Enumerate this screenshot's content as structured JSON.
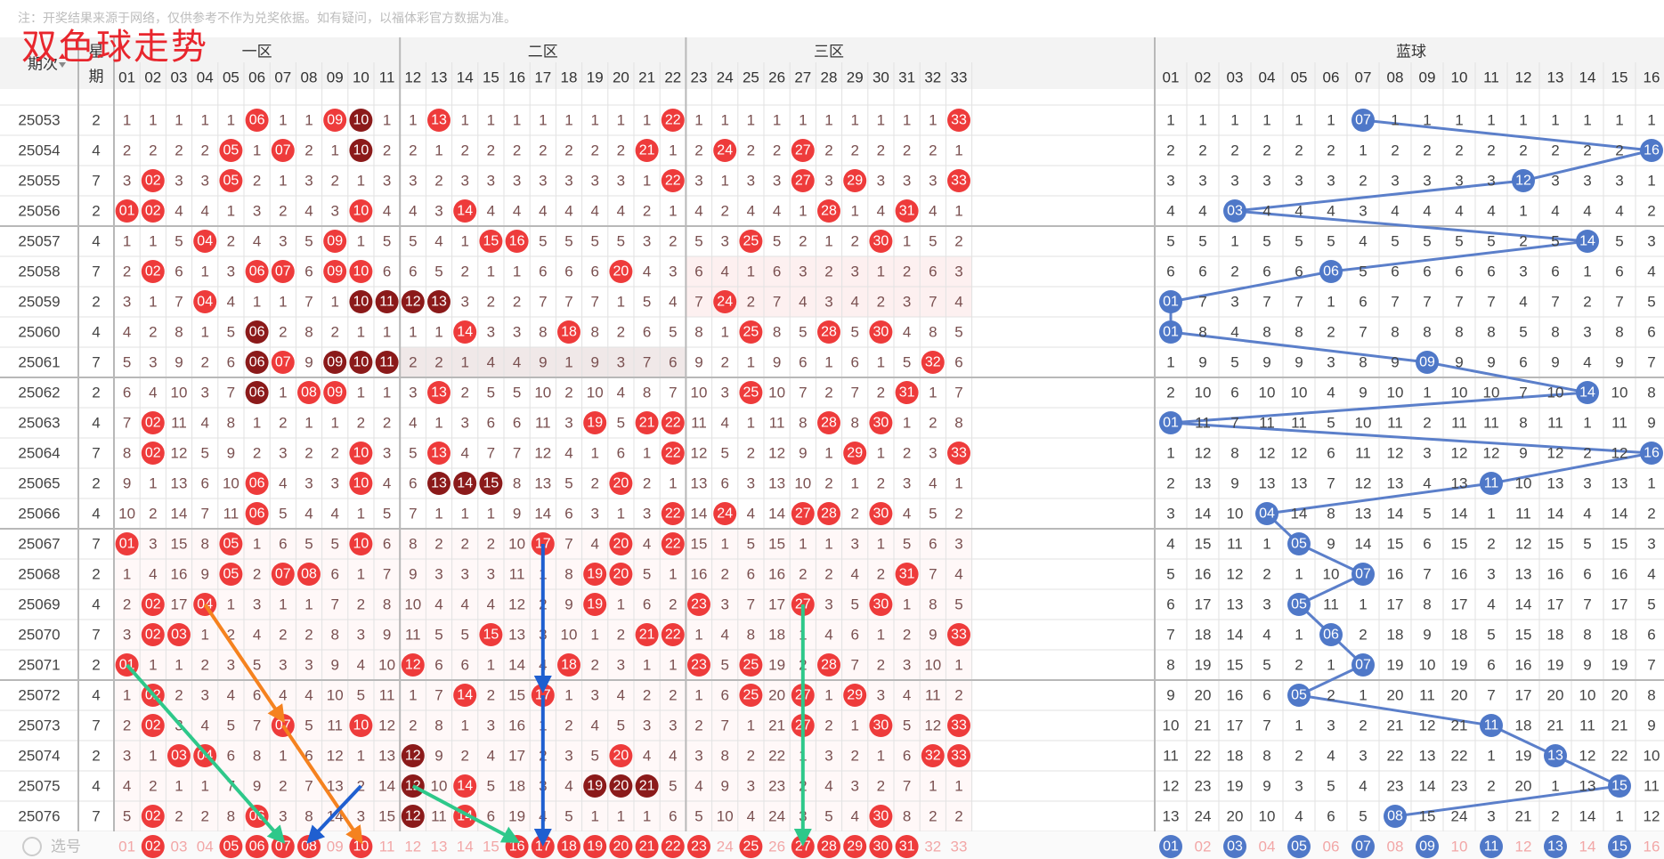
{
  "page": {
    "notice": "注：开奖结果来源于网络，仅供参考不作为兑奖依据。如有疑问，以福体彩官方数据为准。",
    "title": "双色球走势"
  },
  "header": {
    "issue_label": "期次",
    "sort_icon": "sort-arrows-icon",
    "week_label": "星期",
    "zones": [
      {
        "label": "一区",
        "from": 1,
        "to": 11
      },
      {
        "label": "二区",
        "from": 12,
        "to": 22
      },
      {
        "label": "三区",
        "from": 23,
        "to": 33
      },
      {
        "label": "蓝球",
        "from": 1,
        "to": 16
      }
    ],
    "red_numbers": [
      "01",
      "02",
      "03",
      "04",
      "05",
      "06",
      "07",
      "08",
      "09",
      "10",
      "11",
      "12",
      "13",
      "14",
      "15",
      "16",
      "17",
      "18",
      "19",
      "20",
      "21",
      "22",
      "23",
      "24",
      "25",
      "26",
      "27",
      "28",
      "29",
      "30",
      "31",
      "32",
      "33"
    ],
    "blue_numbers": [
      "01",
      "02",
      "03",
      "04",
      "05",
      "06",
      "07",
      "08",
      "09",
      "10",
      "11",
      "12",
      "13",
      "14",
      "15",
      "16"
    ]
  },
  "colors": {
    "red_ball": "#ee3b3b",
    "dark_red_ball": "#8b1a1a",
    "blue_ball": "#4f78c8",
    "blue_line": "#5b7fca",
    "arrow_orange": "#f5821f",
    "arrow_green": "#2ec88a",
    "arrow_blue": "#1f5fd0"
  },
  "chart_data": {
    "type": "table",
    "title": "双色球走势",
    "columns": [
      "期次",
      "星期",
      "red 01-33",
      "blue 01-16"
    ],
    "rows": [
      {
        "issue": "25053",
        "week": "2",
        "reds": [
          6,
          9,
          10,
          13,
          22,
          33
        ],
        "blue": 7,
        "dark": [
          10
        ]
      },
      {
        "issue": "25054",
        "week": "4",
        "reds": [
          5,
          7,
          10,
          21,
          24,
          27
        ],
        "blue": 16,
        "dark": [
          10
        ]
      },
      {
        "issue": "25055",
        "week": "7",
        "reds": [
          2,
          5,
          22,
          27,
          29,
          33
        ],
        "blue": 12,
        "dark": []
      },
      {
        "issue": "25056",
        "week": "2",
        "reds": [
          1,
          2,
          10,
          14,
          28,
          31
        ],
        "blue": 3,
        "dark": []
      },
      {
        "issue": "25057",
        "week": "4",
        "reds": [
          4,
          9,
          15,
          16,
          25,
          30
        ],
        "blue": 14,
        "dark": []
      },
      {
        "issue": "25058",
        "week": "7",
        "reds": [
          2,
          6,
          7,
          9,
          10,
          20
        ],
        "blue": 6,
        "dark": []
      },
      {
        "issue": "25059",
        "week": "2",
        "reds": [
          4,
          10,
          11,
          12,
          13,
          24
        ],
        "blue": 1,
        "dark": [
          10,
          11,
          12,
          13
        ]
      },
      {
        "issue": "25060",
        "week": "4",
        "reds": [
          6,
          14,
          18,
          25,
          28,
          30
        ],
        "blue": 1,
        "dark": [
          6
        ]
      },
      {
        "issue": "25061",
        "week": "7",
        "reds": [
          6,
          7,
          9,
          10,
          11,
          32
        ],
        "blue": 9,
        "dark": [
          6,
          9,
          10,
          11
        ]
      },
      {
        "issue": "25062",
        "week": "2",
        "reds": [
          6,
          8,
          9,
          13,
          25,
          31
        ],
        "blue": 14,
        "dark": [
          6
        ]
      },
      {
        "issue": "25063",
        "week": "4",
        "reds": [
          2,
          19,
          21,
          22,
          28,
          30
        ],
        "blue": 1,
        "dark": []
      },
      {
        "issue": "25064",
        "week": "7",
        "reds": [
          2,
          10,
          13,
          22,
          29,
          33
        ],
        "blue": 16,
        "dark": []
      },
      {
        "issue": "25065",
        "week": "2",
        "reds": [
          6,
          10,
          13,
          14,
          15,
          20
        ],
        "blue": 11,
        "dark": [
          13,
          14,
          15
        ]
      },
      {
        "issue": "25066",
        "week": "4",
        "reds": [
          6,
          22,
          24,
          27,
          28,
          30
        ],
        "blue": 4,
        "dark": []
      },
      {
        "issue": "25067",
        "week": "7",
        "reds": [
          1,
          5,
          10,
          17,
          20,
          22
        ],
        "blue": 5,
        "dark": []
      },
      {
        "issue": "25068",
        "week": "2",
        "reds": [
          5,
          7,
          8,
          19,
          20,
          31
        ],
        "blue": 7,
        "dark": []
      },
      {
        "issue": "25069",
        "week": "4",
        "reds": [
          2,
          4,
          19,
          23,
          27,
          30
        ],
        "blue": 5,
        "dark": []
      },
      {
        "issue": "25070",
        "week": "7",
        "reds": [
          2,
          3,
          15,
          21,
          22,
          33
        ],
        "blue": 6,
        "dark": []
      },
      {
        "issue": "25071",
        "week": "2",
        "reds": [
          1,
          12,
          18,
          23,
          25,
          28
        ],
        "blue": 7,
        "dark": []
      },
      {
        "issue": "25072",
        "week": "4",
        "reds": [
          2,
          14,
          17,
          25,
          27,
          29
        ],
        "blue": 5,
        "dark": []
      },
      {
        "issue": "25073",
        "week": "7",
        "reds": [
          2,
          7,
          10,
          27,
          30,
          33
        ],
        "blue": 11,
        "dark": []
      },
      {
        "issue": "25074",
        "week": "2",
        "reds": [
          3,
          4,
          12,
          20,
          32,
          33
        ],
        "blue": 13,
        "dark": [
          12
        ]
      },
      {
        "issue": "25075",
        "week": "4",
        "reds": [
          12,
          14,
          19,
          20,
          21
        ],
        "blue": 15,
        "dark": [
          12,
          19,
          20,
          21
        ]
      },
      {
        "issue": "25076",
        "week": "7",
        "reds": [
          2,
          6,
          12,
          14,
          30
        ],
        "blue": 8,
        "dark": [
          12
        ]
      }
    ],
    "highlight_rows": [
      "25061",
      "25073"
    ],
    "footer": {
      "label": "选号",
      "red_balls": [
        2,
        5,
        6,
        7,
        8,
        10,
        16,
        17,
        18,
        19,
        20,
        21,
        22,
        23,
        25,
        27,
        28,
        29,
        30,
        31
      ],
      "blue_balls": [
        1,
        3,
        5,
        7,
        9,
        11,
        13,
        15
      ]
    }
  }
}
